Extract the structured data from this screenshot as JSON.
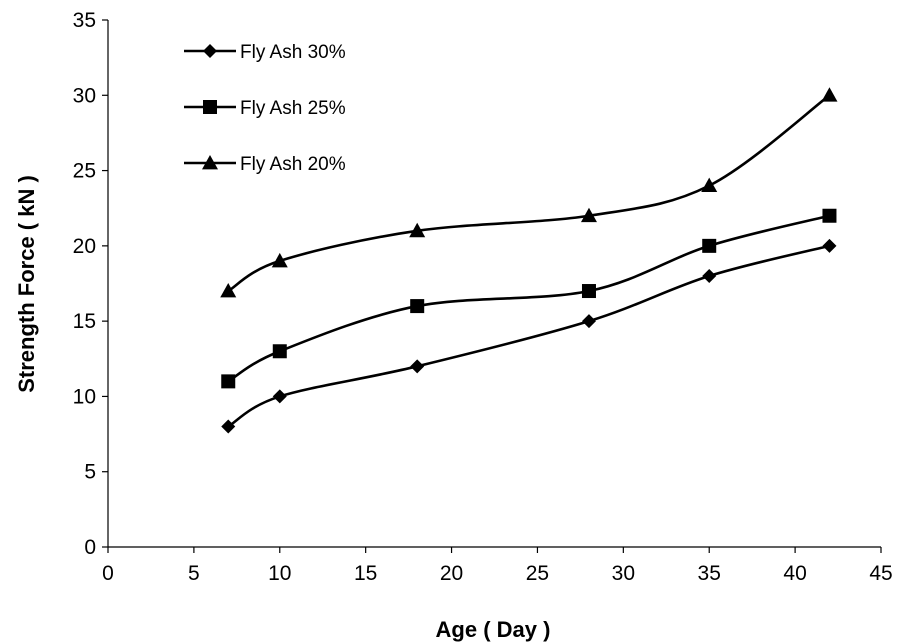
{
  "chart_data": {
    "type": "line",
    "title": "",
    "xlabel": "Age ( Day )",
    "ylabel": "Strength Force ( kN )",
    "xlim": [
      0,
      45
    ],
    "ylim": [
      0,
      35
    ],
    "xticks": [
      0,
      5,
      10,
      15,
      20,
      25,
      30,
      35,
      40,
      45
    ],
    "yticks": [
      0,
      5,
      10,
      15,
      20,
      25,
      30,
      35
    ],
    "grid": false,
    "legend_position": "top-left",
    "smooth": true,
    "x": [
      7,
      10,
      18,
      28,
      35,
      42
    ],
    "series": [
      {
        "name": "Fly Ash 30%",
        "marker": "diamond",
        "color": "#000000",
        "values": [
          8,
          10,
          12,
          15,
          18,
          20
        ]
      },
      {
        "name": "Fly Ash 25%",
        "marker": "square",
        "color": "#000000",
        "values": [
          11,
          13,
          16,
          17,
          20,
          22
        ]
      },
      {
        "name": "Fly Ash 20%",
        "marker": "triangle",
        "color": "#000000",
        "values": [
          17,
          19,
          21,
          22,
          24,
          30
        ]
      }
    ]
  }
}
